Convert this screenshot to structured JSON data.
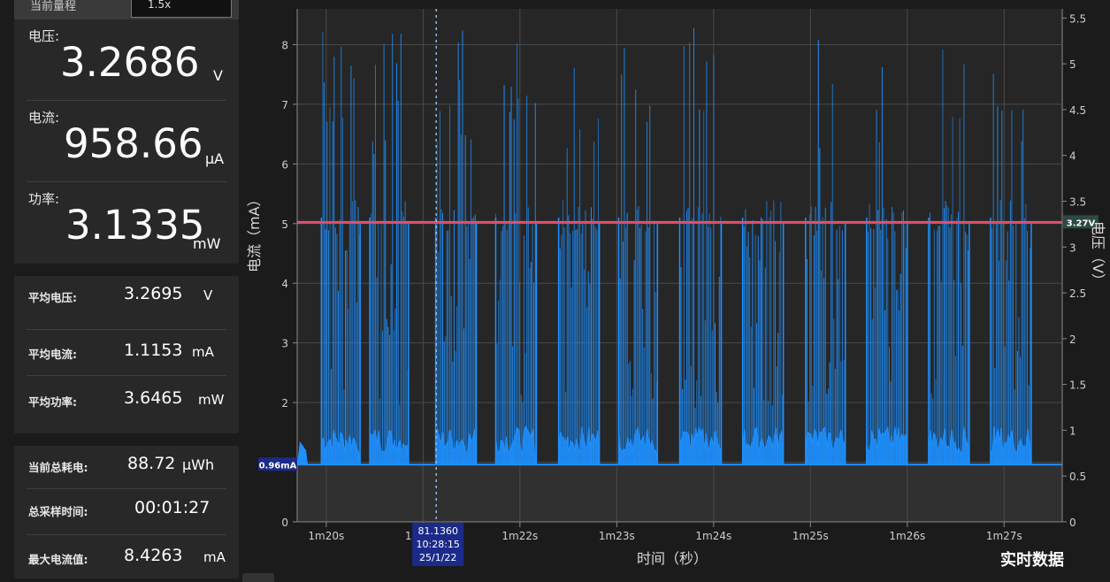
{
  "header": {
    "label": "当前量程",
    "value": "1.5x"
  },
  "measurements": {
    "voltage": {
      "label": "电压:",
      "value": "3.2686",
      "unit": "V"
    },
    "current": {
      "label": "电流:",
      "value": "958.66",
      "unit": "μA"
    },
    "power": {
      "label": "功率:",
      "value": "3.1335",
      "unit": "mW"
    }
  },
  "averages": {
    "voltage": {
      "label": "平均电压:",
      "value": "3.2695",
      "unit": "V"
    },
    "current": {
      "label": "平均电流:",
      "value": "1.1153",
      "unit": "mA"
    },
    "power": {
      "label": "平均功率:",
      "value": "3.6465",
      "unit": "mW"
    }
  },
  "stats": {
    "energy": {
      "label": "当前总耗电:",
      "value": "88.72",
      "unit": "μWh"
    },
    "duration": {
      "label": "总采样时间:",
      "value": "00:01:27"
    },
    "max_current": {
      "label": "最大电流值:",
      "value": "8.4263",
      "unit": "mA"
    }
  },
  "chart_data": {
    "type": "line",
    "xlabel": "时间（秒）",
    "ylabel": "电流（mA）",
    "y2label": "电压（V）",
    "x_ticks": [
      "1m20s",
      "1m21s",
      "1m22s",
      "1m23s",
      "1m24s",
      "1m25s",
      "1m26s",
      "1m27s"
    ],
    "x_range_seconds": [
      79.7,
      87.6
    ],
    "ylim": [
      0,
      8.6
    ],
    "y_ticks": [
      0,
      1,
      2,
      3,
      4,
      5,
      6,
      7,
      8
    ],
    "y2lim": [
      0,
      5.6
    ],
    "y2_ticks": [
      0,
      0.5,
      1,
      1.5,
      2,
      2.5,
      3,
      3.5,
      4,
      4.5,
      5,
      5.5
    ],
    "voltage_marker": "3.27V",
    "voltage_value": 3.27,
    "baseline_marker": "0.96mA",
    "baseline_current": 0.96,
    "cursor": {
      "value": "81.1360",
      "time": "10:28:15",
      "date": "25/1/22",
      "x_seconds": 81.136
    },
    "series": [
      {
        "name": "电流",
        "color": "#1e90ff",
        "bursts": [
          {
            "start": 79.95,
            "end": 80.35,
            "peak": 8.3
          },
          {
            "start": 80.45,
            "end": 80.85,
            "peak": 8.2
          },
          {
            "start": 81.13,
            "end": 81.55,
            "peak": 8.4
          },
          {
            "start": 81.75,
            "end": 82.17,
            "peak": 8.3
          },
          {
            "start": 82.4,
            "end": 82.82,
            "peak": 8.1
          },
          {
            "start": 83.02,
            "end": 83.42,
            "peak": 8.2
          },
          {
            "start": 83.65,
            "end": 84.08,
            "peak": 8.4
          },
          {
            "start": 84.3,
            "end": 84.72,
            "peak": 8.1
          },
          {
            "start": 84.95,
            "end": 85.36,
            "peak": 8.3
          },
          {
            "start": 85.58,
            "end": 86.0,
            "peak": 8.2
          },
          {
            "start": 86.22,
            "end": 86.64,
            "peak": 8.3
          },
          {
            "start": 86.86,
            "end": 87.28,
            "peak": 8.2
          }
        ]
      },
      {
        "name": "电压",
        "color": "#e0506e",
        "value": 3.27
      }
    ]
  },
  "footer": {
    "mode_label": "实时数据"
  },
  "colors": {
    "current_trace": "#1e90ff",
    "voltage_trace": "#e0506e",
    "marker_bg": "#1c2a8a",
    "voltage_tag_bg": "#2c4a44",
    "cursor_line": "#8fb8e8"
  }
}
